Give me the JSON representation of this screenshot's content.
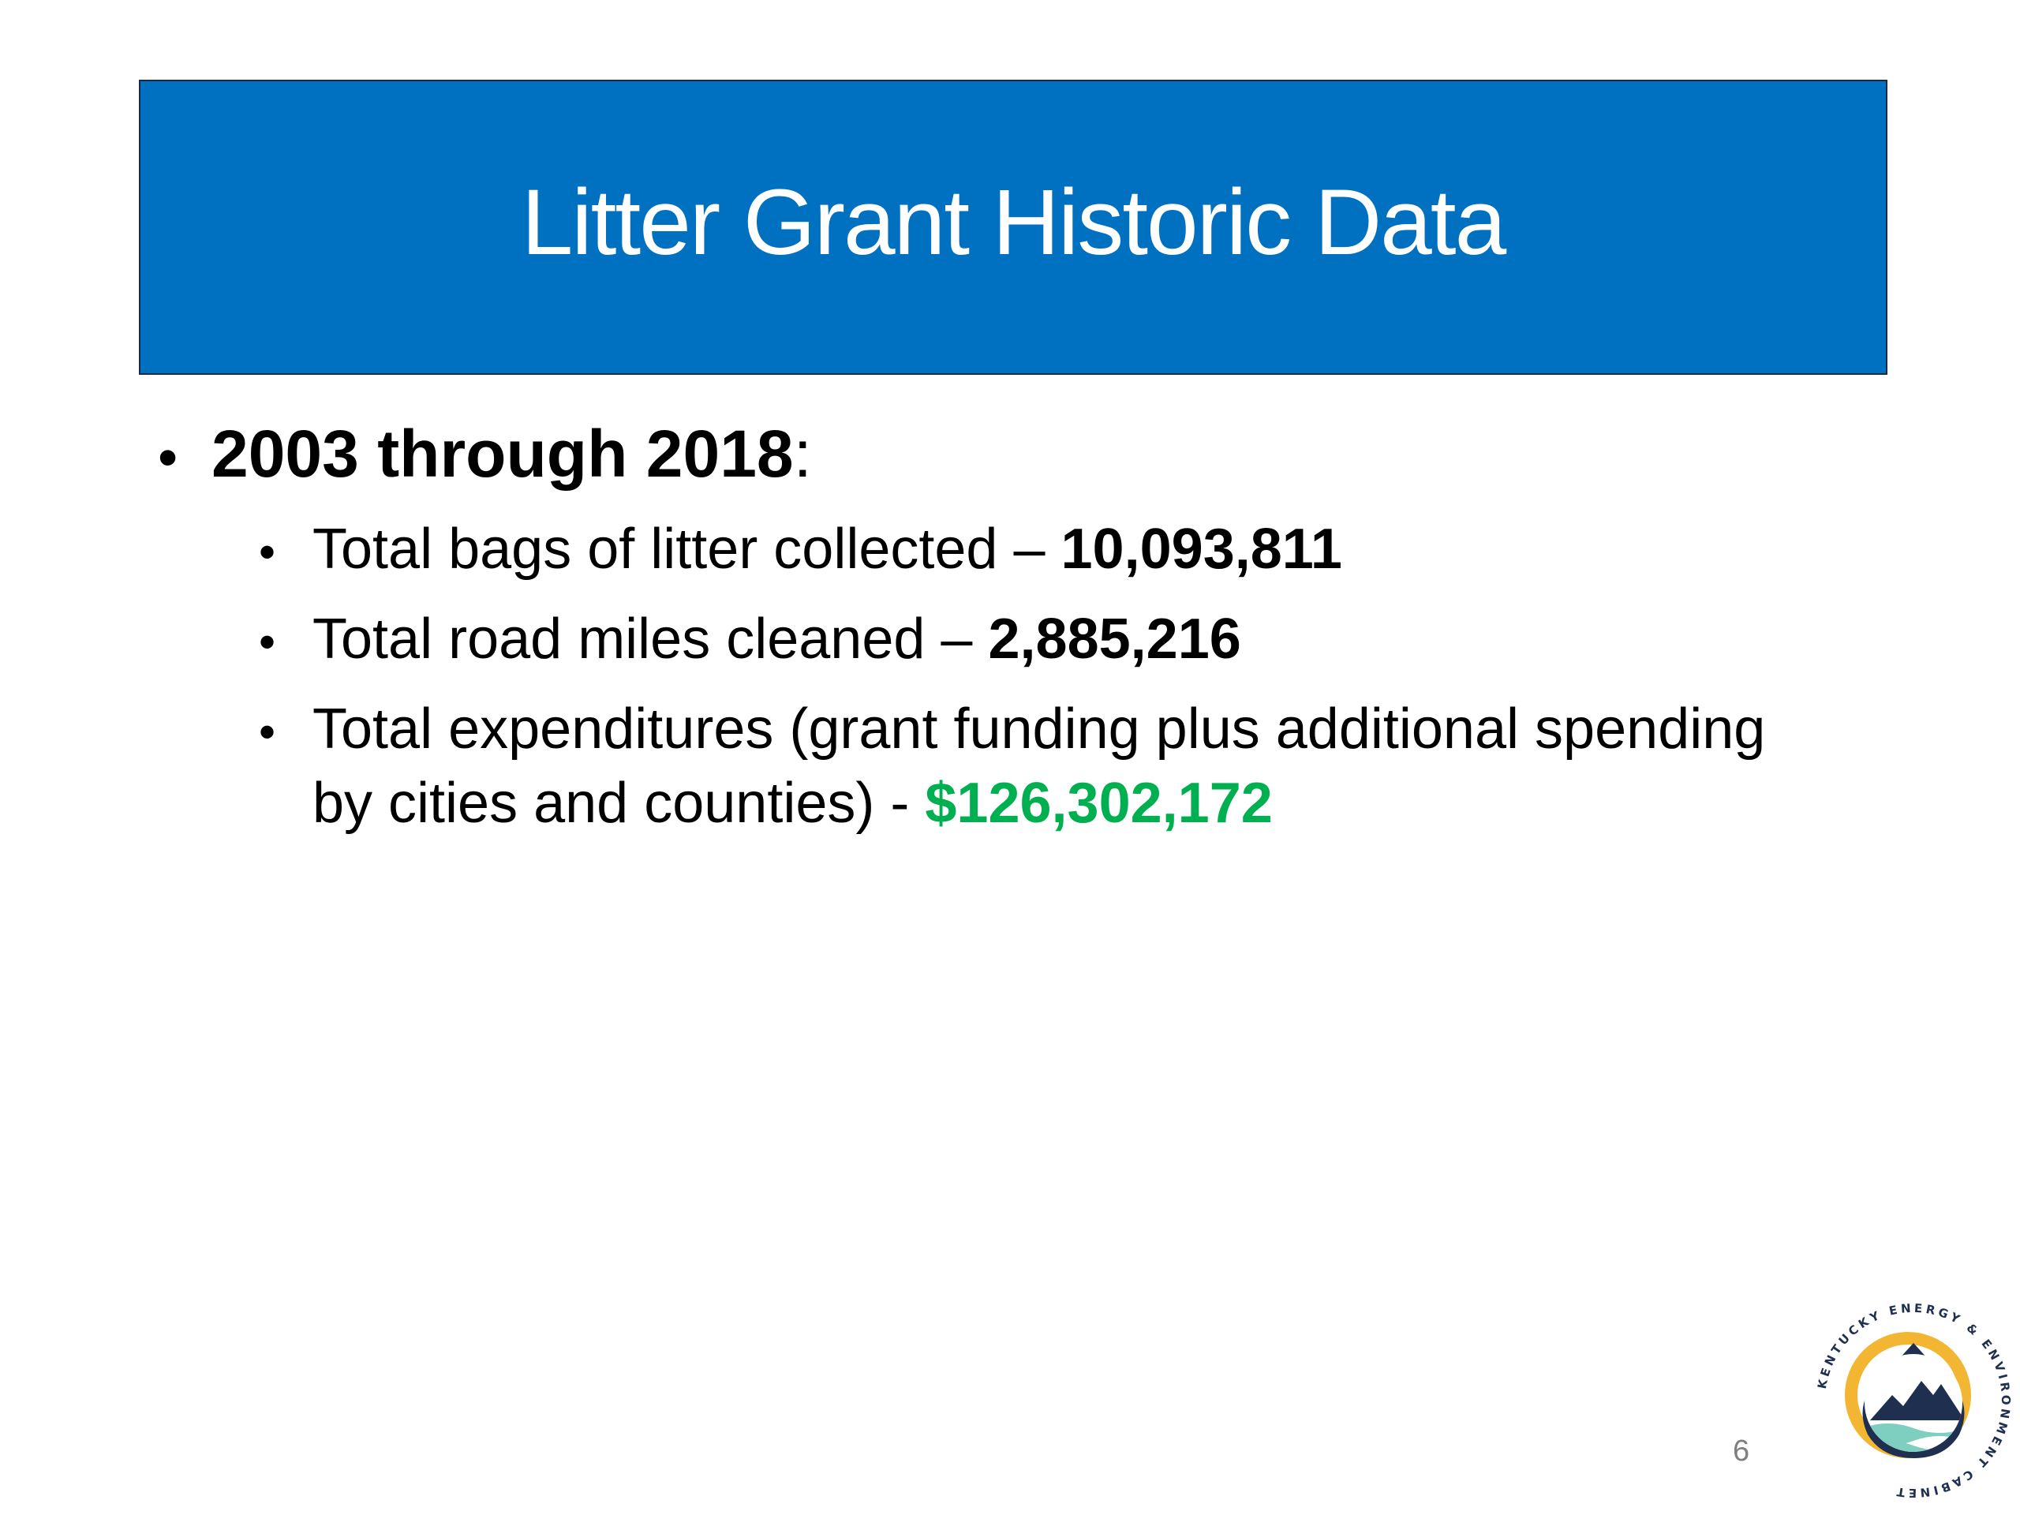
{
  "slide": {
    "title": "Litter Grant Historic Data",
    "main_bullet": {
      "strong": "2003 through 2018",
      "suffix": ":"
    },
    "sub_bullets": [
      {
        "text": "Total bags of litter collected – ",
        "value": "10,093,811"
      },
      {
        "text": "Total road miles cleaned – ",
        "value": "2,885,216"
      },
      {
        "text": "Total expenditures (grant funding plus additional spending by cities and counties) - ",
        "value": "$126,302,172"
      }
    ],
    "page_number": "6",
    "logo": {
      "text": "KENTUCKY ENERGY & ENVIRONMENT CABINET",
      "icon": "kentucky-energy-environment-cabinet-logo"
    }
  },
  "colors": {
    "title_bar": "#0070c0",
    "highlight_green": "#00b050",
    "logo_navy": "#1f2f4f",
    "logo_gold": "#f2b632",
    "logo_teal": "#7fcfc0"
  }
}
